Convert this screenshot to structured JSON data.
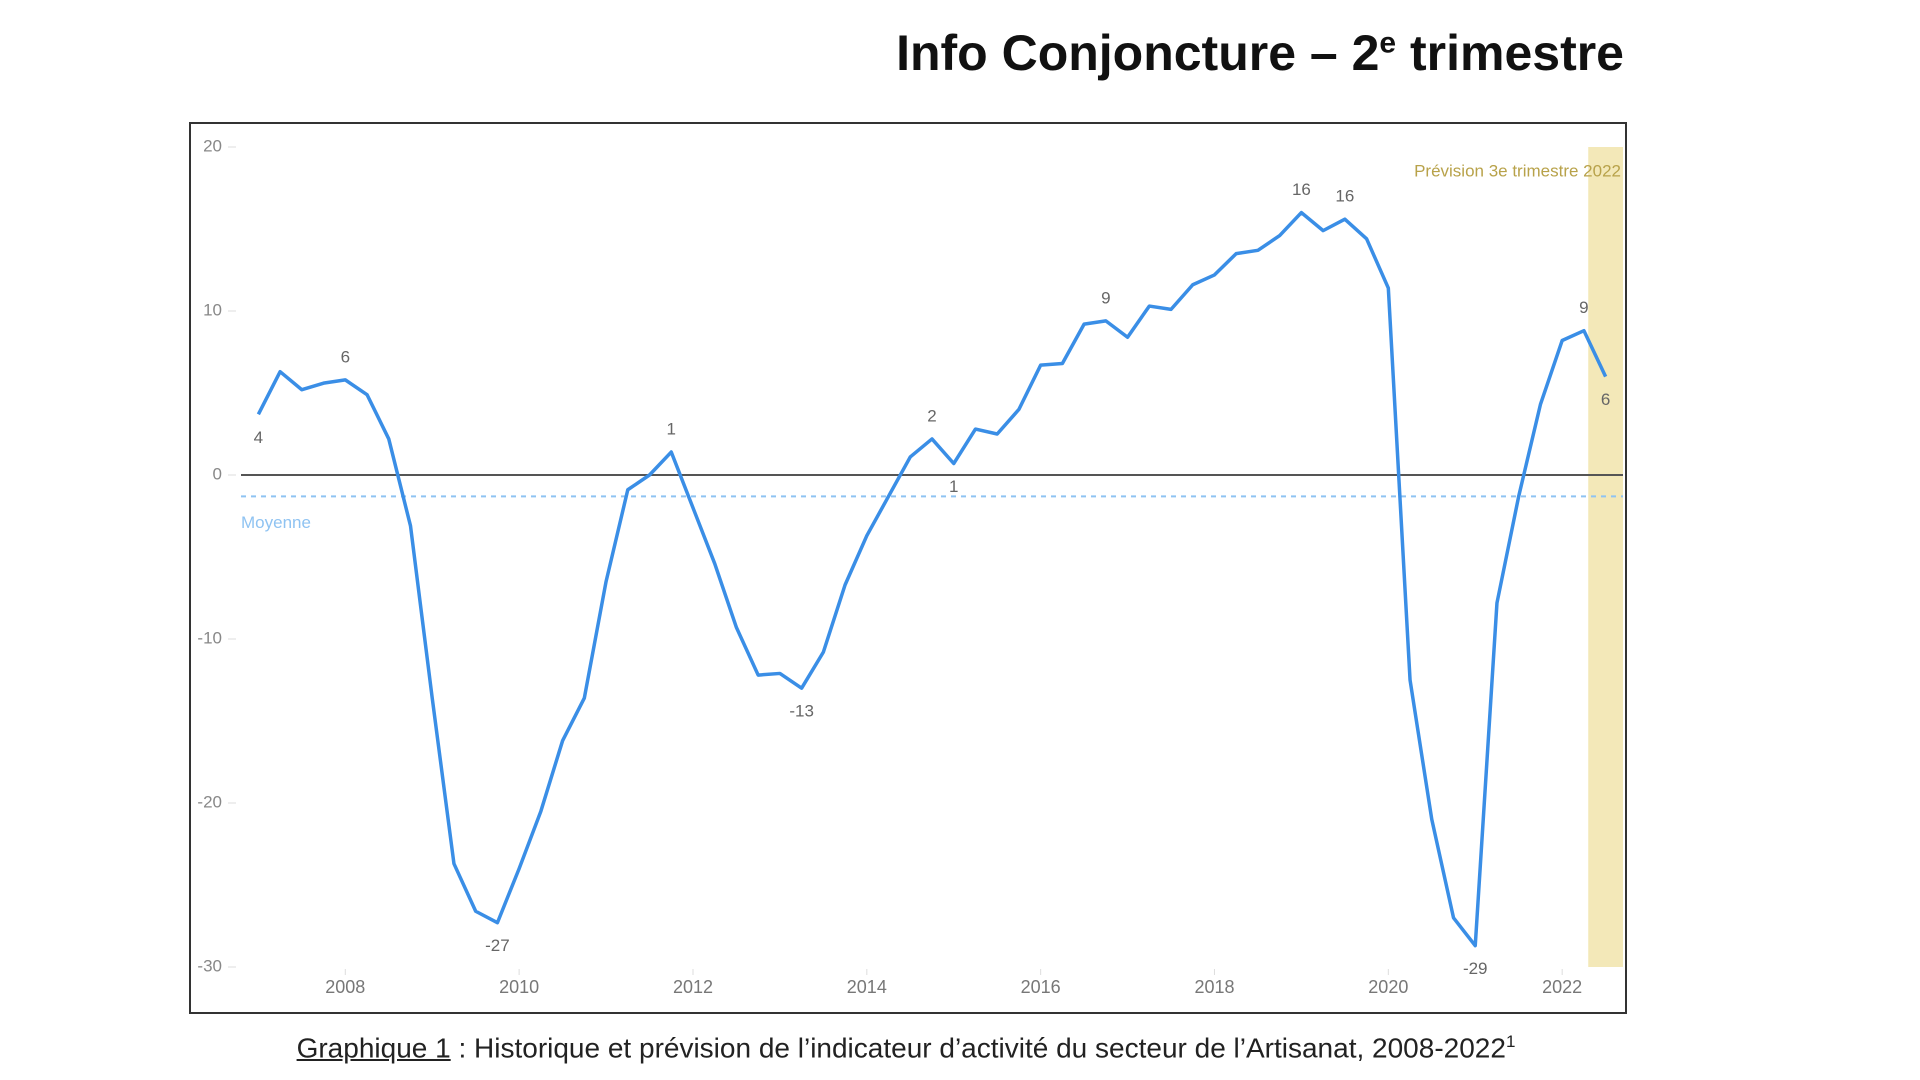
{
  "title": {
    "main": "Info Conjoncture – 2",
    "sup": "e",
    "end": " trimestre"
  },
  "caption": {
    "ref": "Graphique 1",
    "text": " : Historique et prévision de l’indicateur d’activité du secteur de l’Artisanat, 2008-2022",
    "sup": "1"
  },
  "chart_data": {
    "type": "line",
    "color": "#3a8ee6",
    "x": [
      2007,
      2007.25,
      2007.5,
      2007.75,
      2008,
      2008.25,
      2008.5,
      2008.75,
      2009,
      2009.25,
      2009.5,
      2009.75,
      2010,
      2010.25,
      2010.5,
      2010.75,
      2011,
      2011.25,
      2011.5,
      2011.75,
      2012,
      2012.25,
      2012.5,
      2012.75,
      2013,
      2013.25,
      2013.5,
      2013.75,
      2014,
      2014.25,
      2014.5,
      2014.75,
      2015,
      2015.25,
      2015.5,
      2015.75,
      2016,
      2016.25,
      2016.5,
      2016.75,
      2017,
      2017.25,
      2017.5,
      2017.75,
      2018,
      2018.25,
      2018.5,
      2018.75,
      2019,
      2019.25,
      2019.5,
      2019.75,
      2020,
      2020.25,
      2020.5,
      2020.75,
      2021,
      2021.25,
      2021.5,
      2021.75,
      2022,
      2022.25,
      2022.5
    ],
    "values": [
      3.7,
      6.3,
      5.2,
      5.6,
      5.8,
      4.9,
      2.2,
      -3.1,
      -13.6,
      -23.7,
      -26.6,
      -27.3,
      -24,
      -20.5,
      -16.2,
      -13.6,
      -6.5,
      -0.9,
      0,
      1.4,
      -2,
      -5.4,
      -9.3,
      -12.2,
      -12.1,
      -13,
      -10.8,
      -6.7,
      -3.7,
      -1.3,
      1.1,
      2.2,
      0.7,
      2.8,
      2.5,
      4,
      6.7,
      6.8,
      9.2,
      9.4,
      8.4,
      10.3,
      10.1,
      11.6,
      12.2,
      13.5,
      13.7,
      14.6,
      16,
      14.9,
      15.6,
      14.4,
      11.4,
      -12.5,
      -21,
      -27,
      -28.7,
      -7.8,
      -1.3,
      4.3,
      8.2,
      8.8,
      6
    ],
    "value_labels": [
      "4",
      null,
      null,
      null,
      "6",
      null,
      null,
      null,
      null,
      null,
      null,
      "-27",
      null,
      null,
      null,
      null,
      null,
      null,
      null,
      "1",
      null,
      null,
      null,
      null,
      null,
      "-13",
      null,
      null,
      null,
      null,
      null,
      "2",
      "1",
      null,
      null,
      null,
      null,
      null,
      null,
      "9",
      null,
      null,
      null,
      null,
      null,
      null,
      null,
      null,
      "16",
      null,
      "16",
      null,
      null,
      null,
      null,
      null,
      "-29",
      null,
      null,
      null,
      null,
      "9",
      "6"
    ],
    "xlim": [
      2006.8,
      2022.7
    ],
    "xticks": [
      2008,
      2010,
      2012,
      2014,
      2016,
      2018,
      2020,
      2022
    ],
    "ylim": [
      -30,
      20
    ],
    "yticks": [
      -30,
      -20,
      -10,
      0,
      10,
      20
    ],
    "average": {
      "label": "Moyenne",
      "value": -1.3,
      "color": "#8fc3f2"
    },
    "forecast": {
      "label": "Prévision 3e trimestre 2022",
      "range": [
        2022.3,
        2022.7
      ],
      "color": "#efe0a0"
    }
  }
}
